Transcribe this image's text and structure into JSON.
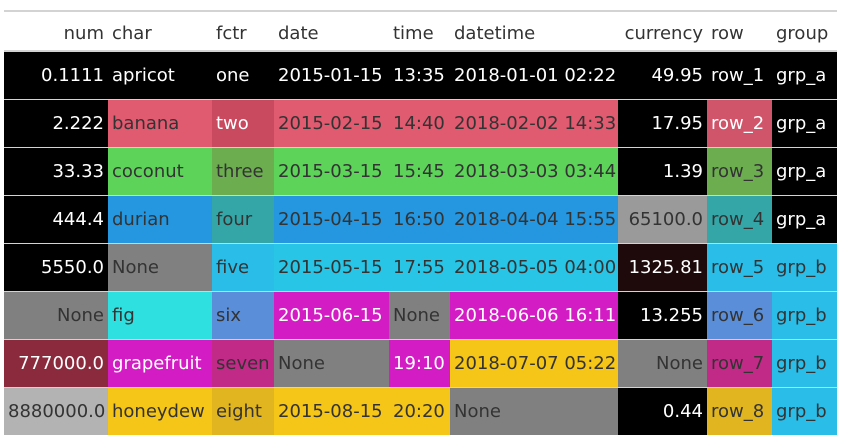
{
  "columns": [
    {
      "label": "num",
      "align": "right"
    },
    {
      "label": "char",
      "align": "left"
    },
    {
      "label": "fctr",
      "align": "left"
    },
    {
      "label": "date",
      "align": "left"
    },
    {
      "label": "time",
      "align": "left"
    },
    {
      "label": "datetime",
      "align": "left"
    },
    {
      "label": "currency",
      "align": "right"
    },
    {
      "label": "row",
      "align": "left"
    },
    {
      "label": "group",
      "align": "left"
    }
  ],
  "rows": [
    [
      {
        "text": "0.1111",
        "bg": "#000000",
        "fg": "#ffffff"
      },
      {
        "text": "apricot",
        "bg": "#000000",
        "fg": "#ffffff"
      },
      {
        "text": "one",
        "bg": "#000000",
        "fg": "#ffffff"
      },
      {
        "text": "2015-01-15",
        "bg": "#000000",
        "fg": "#ffffff"
      },
      {
        "text": "13:35",
        "bg": "#000000",
        "fg": "#ffffff"
      },
      {
        "text": "2018-01-01 02:22",
        "bg": "#000000",
        "fg": "#ffffff"
      },
      {
        "text": "49.95",
        "bg": "#000000",
        "fg": "#ffffff"
      },
      {
        "text": "row_1",
        "bg": "#000000",
        "fg": "#ffffff"
      },
      {
        "text": "grp_a",
        "bg": "#000000",
        "fg": "#ffffff"
      }
    ],
    [
      {
        "text": "2.222",
        "bg": "#000000",
        "fg": "#ffffff"
      },
      {
        "text": "banana",
        "bg": "#e05a70",
        "fg": "#333333"
      },
      {
        "text": "two",
        "bg": "#c94a5e",
        "fg": "#ffffff"
      },
      {
        "text": "2015-02-15",
        "bg": "#e05a70",
        "fg": "#333333"
      },
      {
        "text": "14:40",
        "bg": "#e05a70",
        "fg": "#333333"
      },
      {
        "text": "2018-02-02 14:33",
        "bg": "#e05a70",
        "fg": "#333333"
      },
      {
        "text": "17.95",
        "bg": "#000000",
        "fg": "#ffffff"
      },
      {
        "text": "row_2",
        "bg": "#d0546a",
        "fg": "#ffffff"
      },
      {
        "text": "grp_a",
        "bg": "#000000",
        "fg": "#ffffff"
      }
    ],
    [
      {
        "text": "33.33",
        "bg": "#000000",
        "fg": "#ffffff"
      },
      {
        "text": "coconut",
        "bg": "#5dd35a",
        "fg": "#333333"
      },
      {
        "text": "three",
        "bg": "#6cad50",
        "fg": "#333333"
      },
      {
        "text": "2015-03-15",
        "bg": "#5dd35a",
        "fg": "#333333"
      },
      {
        "text": "15:45",
        "bg": "#5dd35a",
        "fg": "#333333"
      },
      {
        "text": "2018-03-03 03:44",
        "bg": "#5dd35a",
        "fg": "#333333"
      },
      {
        "text": "1.39",
        "bg": "#000000",
        "fg": "#ffffff"
      },
      {
        "text": "row_3",
        "bg": "#6cad50",
        "fg": "#333333"
      },
      {
        "text": "grp_a",
        "bg": "#000000",
        "fg": "#ffffff"
      }
    ],
    [
      {
        "text": "444.4",
        "bg": "#000000",
        "fg": "#ffffff"
      },
      {
        "text": "durian",
        "bg": "#2596e0",
        "fg": "#333333"
      },
      {
        "text": "four",
        "bg": "#35a6a8",
        "fg": "#333333"
      },
      {
        "text": "2015-04-15",
        "bg": "#2596e0",
        "fg": "#333333"
      },
      {
        "text": "16:50",
        "bg": "#2596e0",
        "fg": "#333333"
      },
      {
        "text": "2018-04-04 15:55",
        "bg": "#2596e0",
        "fg": "#333333"
      },
      {
        "text": "65100.0",
        "bg": "#9a9a9a",
        "fg": "#333333"
      },
      {
        "text": "row_4",
        "bg": "#35a6a8",
        "fg": "#333333"
      },
      {
        "text": "grp_a",
        "bg": "#000000",
        "fg": "#ffffff"
      }
    ],
    [
      {
        "text": "5550.0",
        "bg": "#000000",
        "fg": "#ffffff"
      },
      {
        "text": "None",
        "bg": "#808080",
        "fg": "#333333"
      },
      {
        "text": "five",
        "bg": "#29bde8",
        "fg": "#333333"
      },
      {
        "text": "2015-05-15",
        "bg": "#29c5e6",
        "fg": "#333333"
      },
      {
        "text": "17:55",
        "bg": "#29c5e6",
        "fg": "#333333"
      },
      {
        "text": "2018-05-05 04:00",
        "bg": "#29c5e6",
        "fg": "#333333"
      },
      {
        "text": "1325.81",
        "bg": "#1e0a0a",
        "fg": "#ffffff"
      },
      {
        "text": "row_5",
        "bg": "#29bde8",
        "fg": "#333333"
      },
      {
        "text": "grp_b",
        "bg": "#29bde8",
        "fg": "#333333"
      }
    ],
    [
      {
        "text": "None",
        "bg": "#808080",
        "fg": "#333333"
      },
      {
        "text": "fig",
        "bg": "#2ee0e0",
        "fg": "#333333"
      },
      {
        "text": "six",
        "bg": "#5a8ed8",
        "fg": "#333333"
      },
      {
        "text": "2015-06-15",
        "bg": "#d31cc4",
        "fg": "#ffffff"
      },
      {
        "text": "None",
        "bg": "#808080",
        "fg": "#333333"
      },
      {
        "text": "2018-06-06 16:11",
        "bg": "#d31cc4",
        "fg": "#ffffff"
      },
      {
        "text": "13.255",
        "bg": "#000000",
        "fg": "#ffffff"
      },
      {
        "text": "row_6",
        "bg": "#5a8ed8",
        "fg": "#333333"
      },
      {
        "text": "grp_b",
        "bg": "#29bde8",
        "fg": "#333333"
      }
    ],
    [
      {
        "text": "777000.0",
        "bg": "#8a2a3c",
        "fg": "#ffffff"
      },
      {
        "text": "grapefruit",
        "bg": "#d31cc4",
        "fg": "#ffffff"
      },
      {
        "text": "seven",
        "bg": "#c22a88",
        "fg": "#333333"
      },
      {
        "text": "None",
        "bg": "#808080",
        "fg": "#333333"
      },
      {
        "text": "19:10",
        "bg": "#d31cc4",
        "fg": "#ffffff"
      },
      {
        "text": "2018-07-07 05:22",
        "bg": "#f5c518",
        "fg": "#333333"
      },
      {
        "text": "None",
        "bg": "#808080",
        "fg": "#333333"
      },
      {
        "text": "row_7",
        "bg": "#c22a88",
        "fg": "#333333"
      },
      {
        "text": "grp_b",
        "bg": "#29bde8",
        "fg": "#333333"
      }
    ],
    [
      {
        "text": "8880000.0",
        "bg": "#b3b3b3",
        "fg": "#333333"
      },
      {
        "text": "honeydew",
        "bg": "#f5c518",
        "fg": "#333333"
      },
      {
        "text": "eight",
        "bg": "#e0b520",
        "fg": "#333333"
      },
      {
        "text": "2015-08-15",
        "bg": "#f5c518",
        "fg": "#333333"
      },
      {
        "text": "20:20",
        "bg": "#f5c518",
        "fg": "#333333"
      },
      {
        "text": "None",
        "bg": "#808080",
        "fg": "#333333"
      },
      {
        "text": "0.44",
        "bg": "#000000",
        "fg": "#ffffff"
      },
      {
        "text": "row_8",
        "bg": "#e0b520",
        "fg": "#333333"
      },
      {
        "text": "grp_b",
        "bg": "#29bde8",
        "fg": "#333333"
      }
    ]
  ]
}
